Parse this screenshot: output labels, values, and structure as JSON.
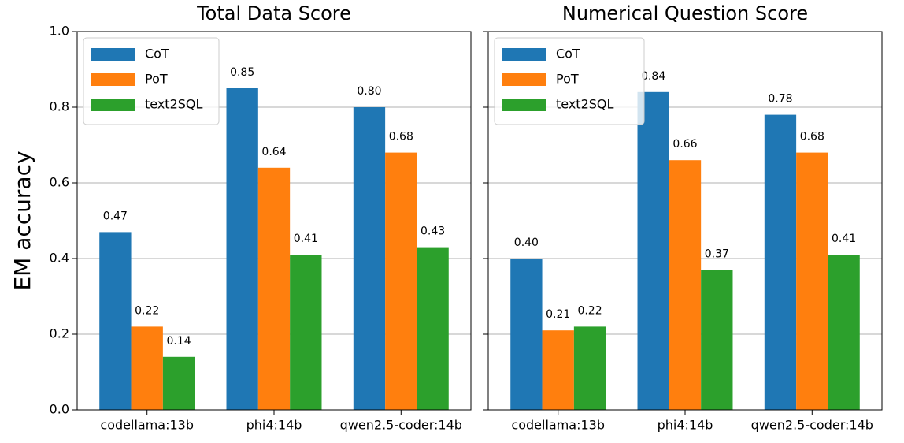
{
  "chart_data": [
    {
      "type": "bar",
      "title": "Total Data Score",
      "ylabel": "EM accuracy",
      "categories": [
        "codellama:13b",
        "phi4:14b",
        "qwen2.5-coder:14b"
      ],
      "series": [
        {
          "name": "CoT",
          "color": "#1f77b4",
          "values": [
            0.47,
            0.85,
            0.8
          ],
          "value_labels": [
            "0.47",
            "0.85",
            "0.80"
          ]
        },
        {
          "name": "PoT",
          "color": "#ff7f0e",
          "values": [
            0.22,
            0.64,
            0.68
          ],
          "value_labels": [
            "0.22",
            "0.64",
            "0.68"
          ]
        },
        {
          "name": "text2SQL",
          "color": "#2ca02c",
          "values": [
            0.14,
            0.41,
            0.43
          ],
          "value_labels": [
            "0.14",
            "0.41",
            "0.43"
          ]
        }
      ],
      "ylim": [
        0,
        1
      ],
      "yticks": [
        {
          "value": 0,
          "label": "0.0"
        },
        0.2,
        0.4,
        0.6,
        0.8,
        {
          "value": 1,
          "label": "1.0"
        }
      ],
      "grid": true,
      "legend": "upper-left"
    },
    {
      "type": "bar",
      "title": "Numerical Question Score",
      "categories": [
        "codellama:13b",
        "phi4:14b",
        "qwen2.5-coder:14b"
      ],
      "series": [
        {
          "name": "CoT",
          "color": "#1f77b4",
          "values": [
            0.4,
            0.84,
            0.78
          ],
          "value_labels": [
            "0.40",
            "0.84",
            "0.78"
          ]
        },
        {
          "name": "PoT",
          "color": "#ff7f0e",
          "values": [
            0.21,
            0.66,
            0.68
          ],
          "value_labels": [
            "0.21",
            "0.66",
            "0.68"
          ]
        },
        {
          "name": "text2SQL",
          "color": "#2ca02c",
          "values": [
            0.22,
            0.37,
            0.41
          ],
          "value_labels": [
            "0.22",
            "0.37",
            "0.41"
          ]
        }
      ],
      "ylim": [
        0,
        1
      ],
      "yticks": [
        0,
        0.2,
        0.4,
        0.6,
        0.8,
        1
      ],
      "grid": true,
      "legend": "upper-left"
    }
  ]
}
